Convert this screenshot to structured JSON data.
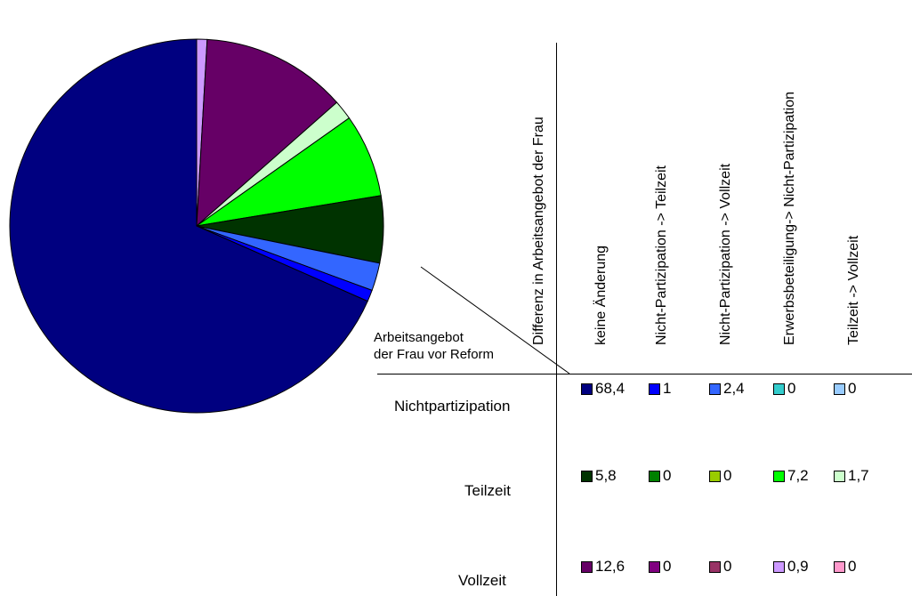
{
  "chart_data": {
    "type": "pie",
    "slices": [
      {
        "row": "Nichtpartizipation",
        "column": "keine Änderung",
        "value": 68.4,
        "color": "#000080"
      },
      {
        "row": "Nichtpartizipation",
        "column": "Nicht-Partizipation -> Teilzeit",
        "value": 1,
        "color": "#0000FF"
      },
      {
        "row": "Nichtpartizipation",
        "column": "Nicht-Partizipation -> Vollzeit",
        "value": 2.4,
        "color": "#3366FF"
      },
      {
        "row": "Nichtpartizipation",
        "column": "Erwerbsbeteiligung-> Nicht-Partizipation",
        "value": 0,
        "color": "#33CCCC"
      },
      {
        "row": "Nichtpartizipation",
        "column": "Teilzeit -> Vollzeit",
        "value": 0,
        "color": "#99CCFF"
      },
      {
        "row": "Teilzeit",
        "column": "keine Änderung",
        "value": 5.8,
        "color": "#003300"
      },
      {
        "row": "Teilzeit",
        "column": "Nicht-Partizipation -> Teilzeit",
        "value": 0,
        "color": "#008000"
      },
      {
        "row": "Teilzeit",
        "column": "Nicht-Partizipation -> Vollzeit",
        "value": 0,
        "color": "#99CC00"
      },
      {
        "row": "Teilzeit",
        "column": "Erwerbsbeteiligung-> Nicht-Partizipation",
        "value": 7.2,
        "color": "#00FF00"
      },
      {
        "row": "Teilzeit",
        "column": "Teilzeit -> Vollzeit",
        "value": 1.7,
        "color": "#CCFFCC"
      },
      {
        "row": "Vollzeit",
        "column": "keine Änderung",
        "value": 12.6,
        "color": "#660066"
      },
      {
        "row": "Vollzeit",
        "column": "Nicht-Partizipation -> Teilzeit",
        "value": 0,
        "color": "#800080"
      },
      {
        "row": "Vollzeit",
        "column": "Nicht-Partizipation -> Vollzeit",
        "value": 0,
        "color": "#993366"
      },
      {
        "row": "Vollzeit",
        "column": "Erwerbsbeteiligung-> Nicht-Partizipation",
        "value": 0.9,
        "color": "#CC99FF"
      },
      {
        "row": "Vollzeit",
        "column": "Teilzeit -> Vollzeit",
        "value": 0,
        "color": "#FF99CC"
      }
    ],
    "columns": [
      "keine Änderung",
      "Nicht-Partizipation -> Teilzeit",
      "Nicht-Partizipation -> Vollzeit",
      "Erwerbsbeteiligung-> Nicht-Partizipation",
      "Teilzeit -> Vollzeit"
    ],
    "rows": [
      "Nichtpartizipation",
      "Teilzeit",
      "Vollzeit"
    ],
    "legend_placement": "right",
    "column_axis_label": "Differenz in Arbeitsangebot der Frau",
    "row_axis_label_line1": "Arbeitsangebot",
    "row_axis_label_line2": "der Frau vor Reform"
  }
}
